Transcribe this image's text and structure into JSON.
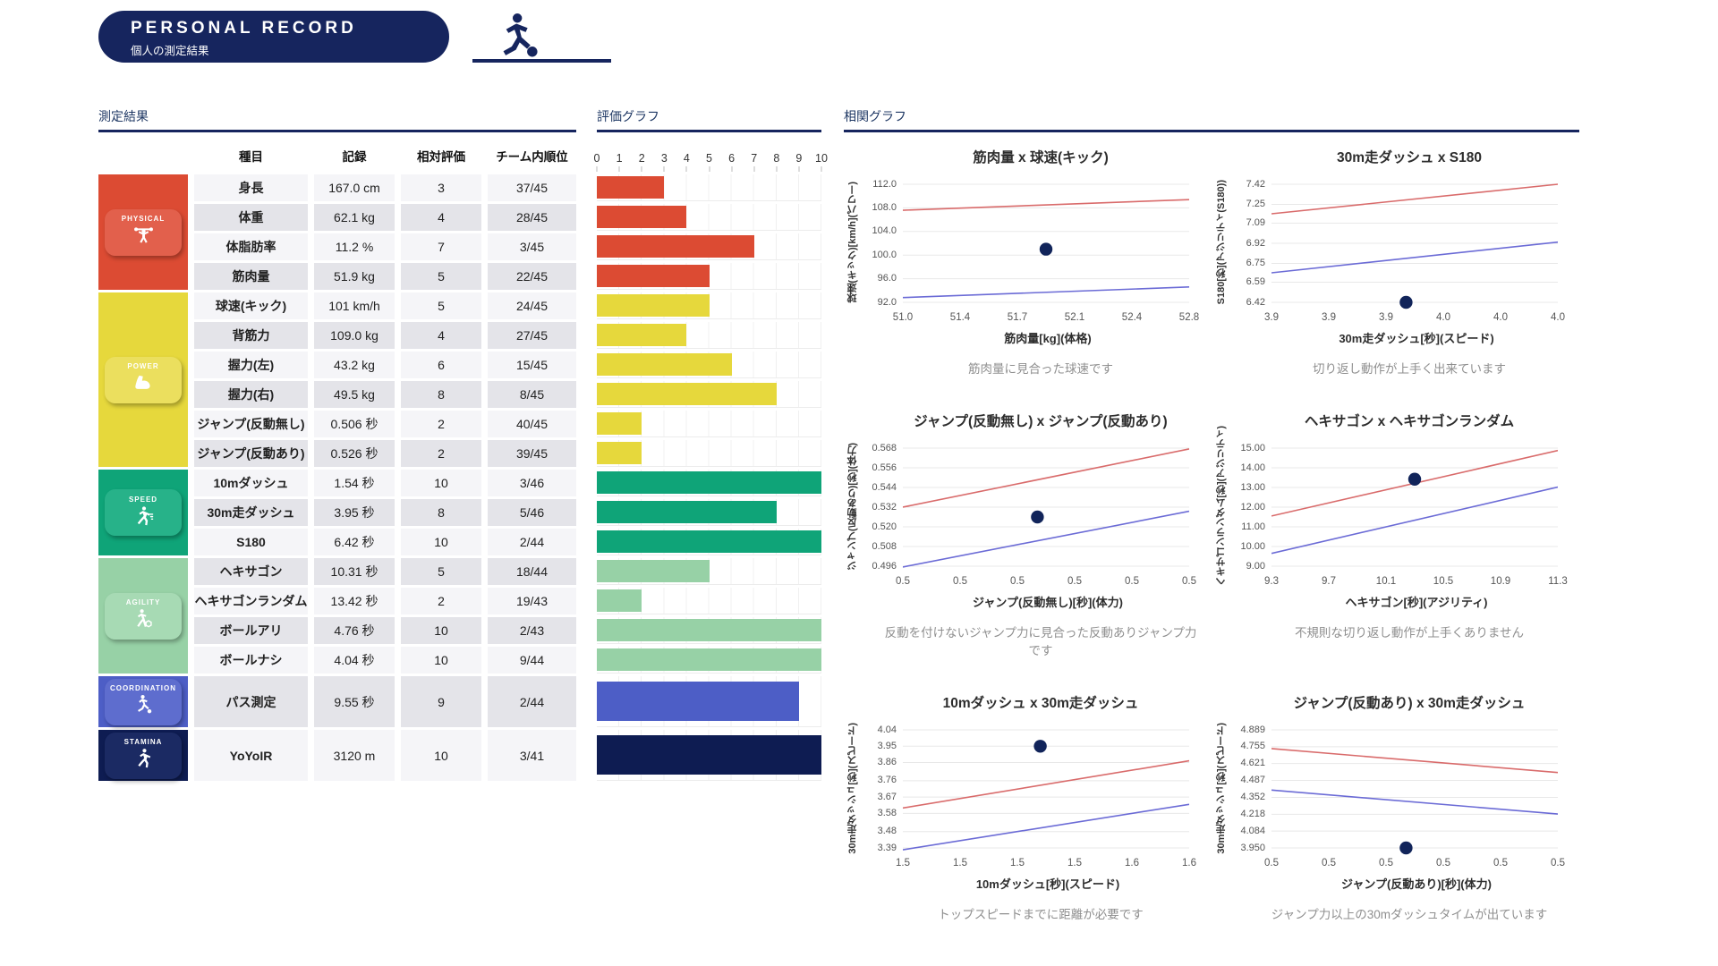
{
  "header": {
    "title": "PERSONAL RECORD",
    "subtitle": "個人の測定結果"
  },
  "sections": {
    "results": "測定結果",
    "evaluation": "評価グラフ",
    "correlation": "相関グラフ"
  },
  "table": {
    "columns": [
      "種目",
      "記録",
      "相対評価",
      "チーム内順位"
    ],
    "categories": [
      {
        "name": "PHYSICAL",
        "icon": "weightlifter-icon",
        "color": "#DC4B33",
        "badge": "#E2604C",
        "rows": 4
      },
      {
        "name": "POWER",
        "icon": "biceps-icon",
        "color": "#E6D83C",
        "badge": "#EBDF5E",
        "rows": 6
      },
      {
        "name": "SPEED",
        "icon": "sprinter-icon",
        "color": "#0FA478",
        "badge": "#27B289",
        "rows": 3
      },
      {
        "name": "AGILITY",
        "icon": "dribbler-icon",
        "color": "#97D1A6",
        "badge": "#A7DAB4",
        "rows": 4
      },
      {
        "name": "COORDINATION",
        "icon": "kicker-icon",
        "color": "#4D5EC6",
        "badge": "#5E6DCE",
        "rows": 1
      },
      {
        "name": "STAMINA",
        "icon": "runner-icon",
        "color": "#0E1C52",
        "badge": "#1B2A63",
        "rows": 1
      }
    ],
    "rows": [
      {
        "event": "身長",
        "record": "167.0 cm",
        "score": 3,
        "rank": "37/45"
      },
      {
        "event": "体重",
        "record": "62.1 kg",
        "score": 4,
        "rank": "28/45"
      },
      {
        "event": "体脂肪率",
        "record": "11.2 %",
        "score": 7,
        "rank": "3/45"
      },
      {
        "event": "筋肉量",
        "record": "51.9 kg",
        "score": 5,
        "rank": "22/45"
      },
      {
        "event": "球速(キック)",
        "record": "101 km/h",
        "score": 5,
        "rank": "24/45"
      },
      {
        "event": "背筋力",
        "record": "109.0 kg",
        "score": 4,
        "rank": "27/45"
      },
      {
        "event": "握力(左)",
        "record": "43.2 kg",
        "score": 6,
        "rank": "15/45"
      },
      {
        "event": "握力(右)",
        "record": "49.5 kg",
        "score": 8,
        "rank": "8/45"
      },
      {
        "event": "ジャンプ(反動無し)",
        "record": "0.506 秒",
        "score": 2,
        "rank": "40/45"
      },
      {
        "event": "ジャンプ(反動あり)",
        "record": "0.526 秒",
        "score": 2,
        "rank": "39/45"
      },
      {
        "event": "10mダッシュ",
        "record": "1.54 秒",
        "score": 10,
        "rank": "3/46"
      },
      {
        "event": "30m走ダッシュ",
        "record": "3.95 秒",
        "score": 8,
        "rank": "5/46"
      },
      {
        "event": "S180",
        "record": "6.42 秒",
        "score": 10,
        "rank": "2/44"
      },
      {
        "event": "ヘキサゴン",
        "record": "10.31 秒",
        "score": 5,
        "rank": "18/44"
      },
      {
        "event": "ヘキサゴンランダム",
        "record": "13.42 秒",
        "score": 2,
        "rank": "19/43"
      },
      {
        "event": "ボールアリ",
        "record": "4.76 秒",
        "score": 10,
        "rank": "2/43"
      },
      {
        "event": "ボールナシ",
        "record": "4.04 秒",
        "score": 10,
        "rank": "9/44"
      },
      {
        "event": "パス測定",
        "record": "9.55 秒",
        "score": 9,
        "rank": "2/44"
      },
      {
        "event": "YoYoIR",
        "record": "3120 m",
        "score": 10,
        "rank": "3/41"
      }
    ]
  },
  "evaluation": {
    "axis": [
      "0",
      "1",
      "2",
      "3",
      "4",
      "5",
      "6",
      "7",
      "8",
      "9",
      "10"
    ]
  },
  "colors": {
    "navy": "#16255E",
    "trend_red": "#D96B6B",
    "trend_blue": "#6B6BD6",
    "point": "#11245A"
  },
  "chart_data": [
    {
      "type": "bar",
      "title": "評価グラフ",
      "orientation": "horizontal",
      "xlim": [
        0,
        10
      ],
      "categories": [
        "身長",
        "体重",
        "体脂肪率",
        "筋肉量",
        "球速(キック)",
        "背筋力",
        "握力(左)",
        "握力(右)",
        "ジャンプ(反動無し)",
        "ジャンプ(反動あり)",
        "10mダッシュ",
        "30m走ダッシュ",
        "S180",
        "ヘキサゴン",
        "ヘキサゴンランダム",
        "ボールアリ",
        "ボールナシ",
        "パス測定",
        "YoYoIR"
      ],
      "values": [
        3,
        4,
        7,
        5,
        5,
        4,
        6,
        8,
        2,
        2,
        10,
        8,
        10,
        5,
        2,
        10,
        10,
        9,
        10
      ],
      "group_of_each_bar": [
        "PHYSICAL",
        "PHYSICAL",
        "PHYSICAL",
        "PHYSICAL",
        "POWER",
        "POWER",
        "POWER",
        "POWER",
        "POWER",
        "POWER",
        "SPEED",
        "SPEED",
        "SPEED",
        "AGILITY",
        "AGILITY",
        "AGILITY",
        "AGILITY",
        "COORDINATION",
        "STAMINA"
      ]
    },
    {
      "type": "scatter",
      "title": "筋肉量 x 球速(キック)",
      "xlabel": "筋肉量[kg](体格)",
      "ylabel": "球速(キック)[km/h](パワー)",
      "x_ticks": [
        "51.0",
        "51.4",
        "51.7",
        "52.1",
        "52.4",
        "52.8"
      ],
      "y_ticks": [
        "92.0",
        "96.0",
        "100.0",
        "104.0",
        "108.0",
        "112.0"
      ],
      "trend_red": [
        107.6,
        109.4
      ],
      "trend_blue": [
        92.8,
        94.6
      ],
      "point": {
        "x_frac": 0.5,
        "y": 101.0
      },
      "caption": "筋肉量に見合った球速です"
    },
    {
      "type": "scatter",
      "title": "30m走ダッシュ x S180",
      "xlabel": "30m走ダッシュ[秒](スピード)",
      "ylabel": "S180[秒](アジリティ(S180))",
      "x_ticks": [
        "3.9",
        "3.9",
        "3.9",
        "4.0",
        "4.0",
        "4.0"
      ],
      "y_ticks": [
        "6.42",
        "6.59",
        "6.75",
        "6.92",
        "7.09",
        "7.25",
        "7.42"
      ],
      "trend_red": [
        7.17,
        7.42
      ],
      "trend_blue": [
        6.67,
        6.93
      ],
      "point": {
        "x_frac": 0.47,
        "y": 6.42
      },
      "caption": "切り返し動作が上手く出来ています"
    },
    {
      "type": "scatter",
      "title": "ジャンプ(反動無し) x ジャンプ(反動あり)",
      "xlabel": "ジャンプ(反動無し)[秒](体力)",
      "ylabel": "ジャンプ(反動あり)[秒](体力)",
      "x_ticks": [
        "0.5",
        "0.5",
        "0.5",
        "0.5",
        "0.5",
        "0.5"
      ],
      "y_ticks": [
        "0.496",
        "0.508",
        "0.520",
        "0.532",
        "0.544",
        "0.556",
        "0.568"
      ],
      "trend_red": [
        0.532,
        0.5675
      ],
      "trend_blue": [
        0.4955,
        0.5295
      ],
      "point": {
        "x_frac": 0.47,
        "y": 0.526
      },
      "caption": "反動を付けないジャンプ力に見合った反動ありジャンプ力です"
    },
    {
      "type": "scatter",
      "title": "ヘキサゴン x ヘキサゴンランダム",
      "xlabel": "ヘキサゴン[秒](アジリティ)",
      "ylabel": "ヘキサゴンランダム[秒](アジリティ)",
      "x_ticks": [
        "9.3",
        "9.7",
        "10.1",
        "10.5",
        "10.9",
        "11.3"
      ],
      "y_ticks": [
        "9.00",
        "10.00",
        "11.00",
        "12.00",
        "13.00",
        "14.00",
        "15.00"
      ],
      "trend_red": [
        11.55,
        14.88
      ],
      "trend_blue": [
        9.65,
        13.02
      ],
      "point": {
        "x_frac": 0.5,
        "y": 13.42
      },
      "caption": "不規則な切り返し動作が上手くありません"
    },
    {
      "type": "scatter",
      "title": "10mダッシュ x 30m走ダッシュ",
      "xlabel": "10mダッシュ[秒](スピード)",
      "ylabel": "30m走ダッシュ[秒](スピード)",
      "x_ticks": [
        "1.5",
        "1.5",
        "1.5",
        "1.5",
        "1.6",
        "1.6"
      ],
      "y_ticks": [
        "3.39",
        "3.48",
        "3.58",
        "3.67",
        "3.76",
        "3.86",
        "3.95",
        "4.04"
      ],
      "trend_red": [
        3.61,
        3.87
      ],
      "trend_blue": [
        3.38,
        3.63
      ],
      "point": {
        "x_frac": 0.48,
        "y": 3.95
      },
      "caption": "トップスピードまでに距離が必要です"
    },
    {
      "type": "scatter",
      "title": "ジャンプ(反動あり) x 30m走ダッシュ",
      "xlabel": "ジャンプ(反動あり)[秒](体力)",
      "ylabel": "30m走ダッシュ[秒](スピード)",
      "x_ticks": [
        "0.5",
        "0.5",
        "0.5",
        "0.5",
        "0.5",
        "0.5"
      ],
      "y_ticks": [
        "3.950",
        "4.084",
        "4.218",
        "4.352",
        "4.487",
        "4.621",
        "4.755",
        "4.889"
      ],
      "trend_red": [
        4.74,
        4.55
      ],
      "trend_blue": [
        4.41,
        4.22
      ],
      "point": {
        "x_frac": 0.47,
        "y": 3.95
      },
      "caption": "ジャンプ力以上の30mダッシュタイムが出ています"
    }
  ]
}
